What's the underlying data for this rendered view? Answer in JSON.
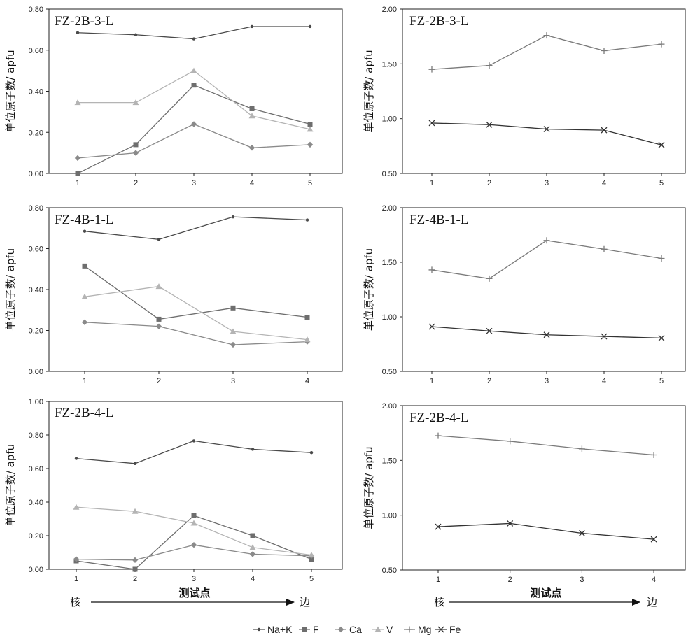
{
  "chart_data": [
    {
      "type": "line",
      "title": "FZ-2B-3-L",
      "ylabel": "单位原子数/ apfu",
      "xlabel": "",
      "categories": [
        "1",
        "2",
        "3",
        "4",
        "5"
      ],
      "ylim": [
        0,
        0.8
      ],
      "yticks": [
        "0.00",
        "0.20",
        "0.40",
        "0.60",
        "0.80"
      ],
      "series": [
        {
          "name": "Na+K",
          "values": [
            0.685,
            0.675,
            0.655,
            0.715,
            0.715
          ]
        },
        {
          "name": "F",
          "values": [
            0.0,
            0.14,
            0.43,
            0.315,
            0.24
          ]
        },
        {
          "name": "Ca",
          "values": [
            0.075,
            0.1,
            0.24,
            0.125,
            0.14
          ]
        },
        {
          "name": "V",
          "values": [
            0.345,
            0.345,
            0.5,
            0.28,
            0.215
          ]
        }
      ]
    },
    {
      "type": "line",
      "title": "FZ-2B-3-L",
      "ylabel": "单位原子数/ apfu",
      "xlabel": "",
      "categories": [
        "1",
        "2",
        "3",
        "4",
        "5"
      ],
      "ylim": [
        0.5,
        2.0
      ],
      "yticks": [
        "0.50",
        "1.00",
        "1.50",
        "2.00"
      ],
      "series": [
        {
          "name": "Mg",
          "values": [
            1.45,
            1.485,
            1.76,
            1.62,
            1.68
          ]
        },
        {
          "name": "Fe",
          "values": [
            0.96,
            0.945,
            0.905,
            0.895,
            0.76
          ]
        }
      ]
    },
    {
      "type": "line",
      "title": "FZ-4B-1-L",
      "ylabel": "单位原子数/ apfu",
      "xlabel": "",
      "categories": [
        "1",
        "2",
        "3",
        "4"
      ],
      "ylim": [
        0,
        0.8
      ],
      "yticks": [
        "0.00",
        "0.20",
        "0.40",
        "0.60",
        "0.80"
      ],
      "series": [
        {
          "name": "Na+K",
          "values": [
            0.685,
            0.645,
            0.755,
            0.74
          ]
        },
        {
          "name": "F",
          "values": [
            0.515,
            0.255,
            0.31,
            0.265
          ]
        },
        {
          "name": "Ca",
          "values": [
            0.24,
            0.22,
            0.13,
            0.145
          ]
        },
        {
          "name": "V",
          "values": [
            0.365,
            0.415,
            0.195,
            0.155
          ]
        }
      ]
    },
    {
      "type": "line",
      "title": "FZ-4B-1-L",
      "ylabel": "单位原子数/ apfu",
      "xlabel": "",
      "categories": [
        "1",
        "2",
        "3",
        "4",
        "5"
      ],
      "ylim": [
        0.5,
        2.0
      ],
      "yticks": [
        "0.50",
        "1.00",
        "1.50",
        "2.00"
      ],
      "series": [
        {
          "name": "Mg",
          "values": [
            1.43,
            1.35,
            1.7,
            1.62,
            1.535
          ]
        },
        {
          "name": "Fe",
          "values": [
            0.91,
            0.87,
            0.835,
            0.82,
            0.805
          ]
        }
      ]
    },
    {
      "type": "line",
      "title": "FZ-2B-4-L",
      "ylabel": "单位原子数/ apfu",
      "xlabel": "测试点",
      "categories": [
        "1",
        "2",
        "3",
        "4",
        "5"
      ],
      "ylim": [
        0,
        1.0
      ],
      "yticks": [
        "0.00",
        "0.20",
        "0.40",
        "0.60",
        "0.80",
        "1.00"
      ],
      "series": [
        {
          "name": "Na+K",
          "values": [
            0.66,
            0.63,
            0.765,
            0.715,
            0.695
          ]
        },
        {
          "name": "F",
          "values": [
            0.05,
            0.0,
            0.32,
            0.2,
            0.06
          ]
        },
        {
          "name": "Ca",
          "values": [
            0.06,
            0.055,
            0.145,
            0.09,
            0.08
          ]
        },
        {
          "name": "V",
          "values": [
            0.37,
            0.345,
            0.275,
            0.13,
            0.085
          ]
        }
      ]
    },
    {
      "type": "line",
      "title": "FZ-2B-4-L",
      "ylabel": "单位原子数/ apfu",
      "xlabel": "测试点",
      "categories": [
        "1",
        "2",
        "3",
        "4"
      ],
      "ylim": [
        0.5,
        2.0
      ],
      "yticks": [
        "0.50",
        "1.00",
        "1.50",
        "2.00"
      ],
      "series": [
        {
          "name": "Mg",
          "values": [
            1.725,
            1.675,
            1.605,
            1.55
          ]
        },
        {
          "name": "Fe",
          "values": [
            0.895,
            0.925,
            0.835,
            0.78
          ]
        }
      ]
    }
  ],
  "direction": {
    "start": "核",
    "end": "边"
  },
  "legend": [
    {
      "name": "Na+K",
      "marker": "dot",
      "color": "#4a4a4a"
    },
    {
      "name": "F",
      "marker": "square",
      "color": "#6e6e6e"
    },
    {
      "name": "Ca",
      "marker": "diamond",
      "color": "#8a8a8a"
    },
    {
      "name": "V",
      "marker": "triangle",
      "color": "#b4b4b4"
    },
    {
      "name": "Mg",
      "marker": "plus",
      "color": "#7a7a7a"
    },
    {
      "name": "Fe",
      "marker": "cross",
      "color": "#333333"
    }
  ]
}
